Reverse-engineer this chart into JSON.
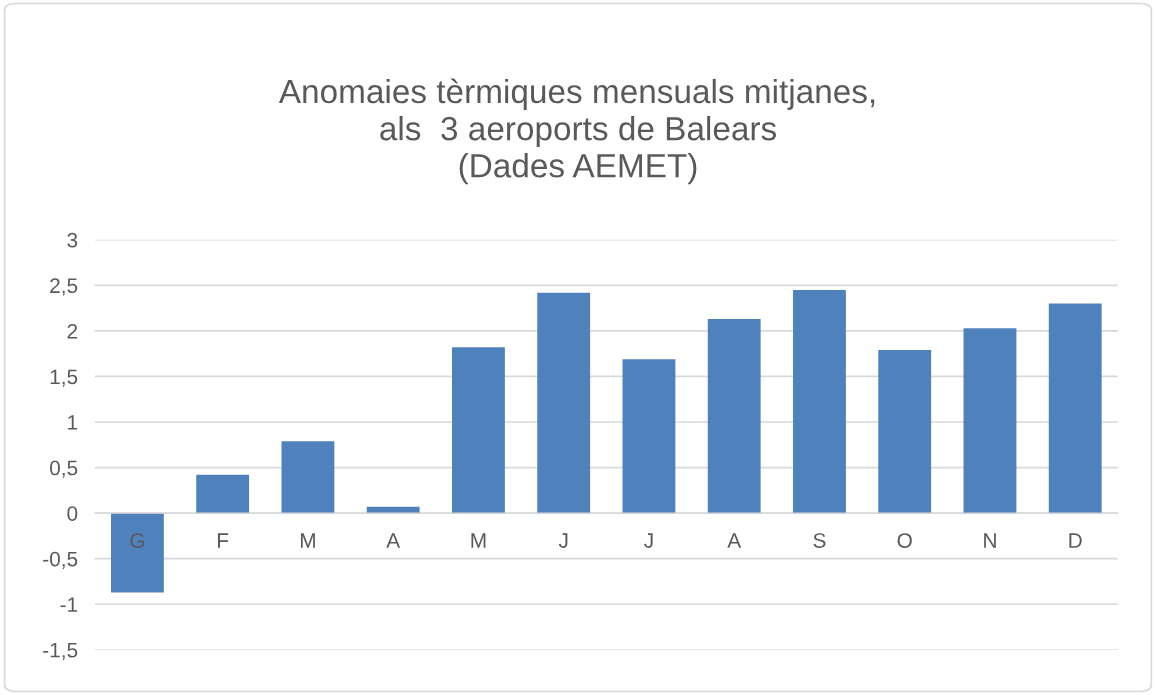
{
  "chart_data": {
    "type": "bar",
    "title": "Anomaies tèrmiques mensuals mitjanes,\nals  3 aeroports de Balears\n(Dades AEMET)",
    "categories": [
      "G",
      "F",
      "M",
      "A",
      "M",
      "J",
      "J",
      "A",
      "S",
      "O",
      "N",
      "D"
    ],
    "values": [
      -0.87,
      0.42,
      0.79,
      0.07,
      1.82,
      2.42,
      1.69,
      2.13,
      2.45,
      1.79,
      2.03,
      2.3
    ],
    "color": "#4f81bd",
    "ylim": [
      -1.5,
      3
    ],
    "yticks": [
      {
        "value": -1.5,
        "label": "-1,5"
      },
      {
        "value": -1,
        "label": "-1"
      },
      {
        "value": -0.5,
        "label": "-0,5"
      },
      0,
      {
        "value": 0.5,
        "label": "0,5"
      },
      1,
      {
        "value": 1.5,
        "label": "1,5"
      },
      2,
      {
        "value": 2.5,
        "label": "2,5"
      },
      3
    ],
    "grid": "y",
    "legend": false
  }
}
